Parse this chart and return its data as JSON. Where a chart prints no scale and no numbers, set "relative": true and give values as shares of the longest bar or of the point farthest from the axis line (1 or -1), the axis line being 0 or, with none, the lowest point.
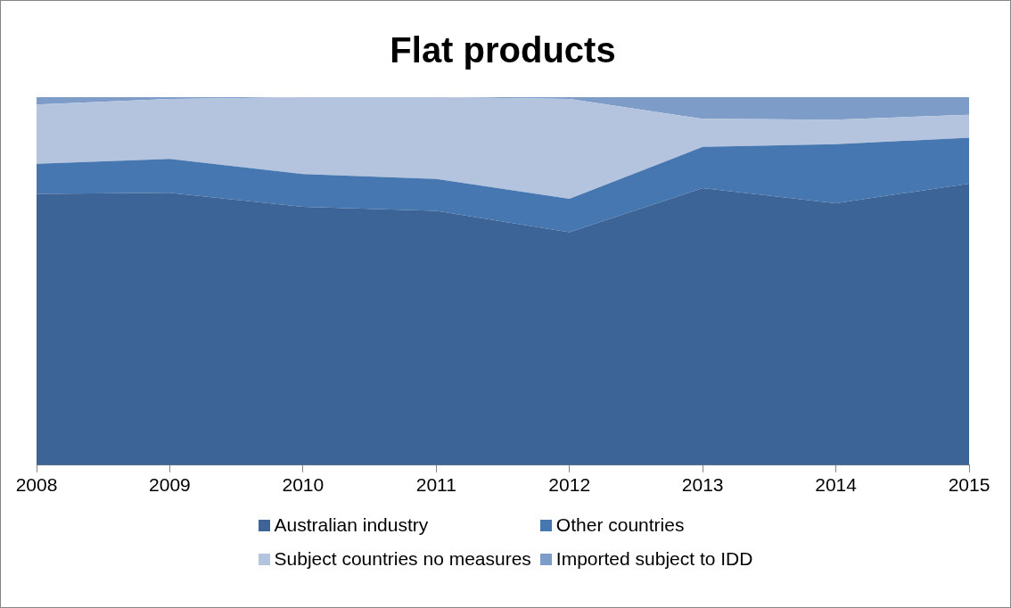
{
  "chart_data": {
    "type": "area",
    "title": "Flat products",
    "categories": [
      "2008",
      "2009",
      "2010",
      "2011",
      "2012",
      "2013",
      "2014",
      "2015"
    ],
    "relative": true,
    "stacked": true,
    "legend": "bottom",
    "series": [
      {
        "name": "Australian industry",
        "color": "#3d6496",
        "values": [
          0.737,
          0.74,
          0.702,
          0.691,
          0.633,
          0.753,
          0.712,
          0.765
        ]
      },
      {
        "name": "Other countries",
        "color": "#4677b0",
        "values": [
          0.082,
          0.092,
          0.089,
          0.087,
          0.091,
          0.112,
          0.16,
          0.125
        ]
      },
      {
        "name": "Subject countries no measures",
        "color": "#b4c3de",
        "values": [
          0.161,
          0.163,
          0.209,
          0.222,
          0.271,
          0.076,
          0.067,
          0.062
        ]
      },
      {
        "name": "Imported subject to IDD",
        "color": "#7e9cc8",
        "values": [
          0.02,
          0.005,
          0,
          0,
          0.005,
          0.059,
          0.061,
          0.048
        ]
      }
    ]
  }
}
